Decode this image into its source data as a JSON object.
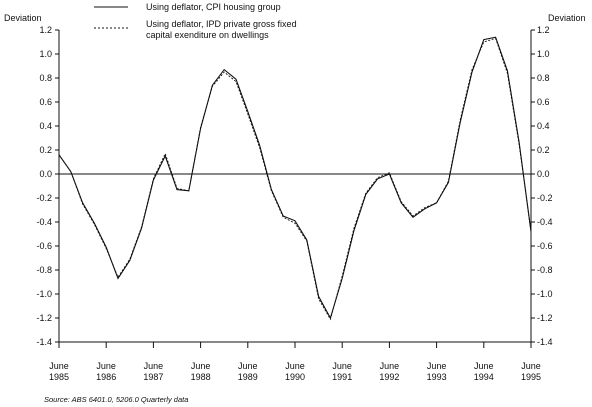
{
  "chart_data": {
    "type": "line",
    "left_axis_title": "Deviation",
    "right_axis_title": "Deviation",
    "ylim": [
      -1.4,
      1.2
    ],
    "yticks": [
      1.2,
      1.0,
      0.8,
      0.6,
      0.4,
      0.2,
      0.0,
      -0.2,
      -0.4,
      -0.6,
      -0.8,
      -1.0,
      -1.2,
      -1.4
    ],
    "ytick_labels": [
      "1.2",
      "1.0",
      "0.8",
      "0.6",
      "0.4",
      "0.2",
      "0.0",
      "-0.2",
      "-0.4",
      "-0.6",
      "-0.8",
      "-1.0",
      "-1.2",
      "-1.4"
    ],
    "xlim": [
      1985.0,
      1995.0
    ],
    "xticks": [
      {
        "month": "June",
        "year": "1985",
        "x": 1985.0
      },
      {
        "month": "June",
        "year": "1986",
        "x": 1986.0
      },
      {
        "month": "June",
        "year": "1987",
        "x": 1987.0
      },
      {
        "month": "June",
        "year": "1988",
        "x": 1988.0
      },
      {
        "month": "June",
        "year": "1989",
        "x": 1989.0
      },
      {
        "month": "June",
        "year": "1990",
        "x": 1990.0
      },
      {
        "month": "June",
        "year": "1991",
        "x": 1991.0
      },
      {
        "month": "June",
        "year": "1992",
        "x": 1992.0
      },
      {
        "month": "June",
        "year": "1993",
        "x": 1993.0
      },
      {
        "month": "June",
        "year": "1994",
        "x": 1994.0
      },
      {
        "month": "June",
        "year": "1995",
        "x": 1995.0
      }
    ],
    "zero_line": true,
    "grid": false,
    "legend_position": "top-left",
    "series": [
      {
        "name": "Using deflator, CPI housing group",
        "style": "solid",
        "legend_lines": [
          "Using deflator, CPI housing group"
        ],
        "x": [
          1985.0,
          1985.25,
          1985.5,
          1985.75,
          1986.0,
          1986.25,
          1986.5,
          1986.75,
          1987.0,
          1987.25,
          1987.5,
          1987.75,
          1988.0,
          1988.25,
          1988.5,
          1988.75,
          1989.0,
          1989.25,
          1989.5,
          1989.75,
          1990.0,
          1990.25,
          1990.5,
          1990.75,
          1991.0,
          1991.25,
          1991.5,
          1991.75,
          1992.0,
          1992.25,
          1992.5,
          1992.75,
          1993.0,
          1993.25,
          1993.5,
          1993.75,
          1994.0,
          1994.25,
          1994.5,
          1994.75,
          1995.0
        ],
        "y": [
          0.16,
          0.02,
          -0.24,
          -0.41,
          -0.61,
          -0.87,
          -0.72,
          -0.45,
          -0.05,
          0.15,
          -0.13,
          -0.14,
          0.38,
          0.74,
          0.87,
          0.79,
          0.52,
          0.24,
          -0.13,
          -0.35,
          -0.39,
          -0.55,
          -1.02,
          -1.2,
          -0.87,
          -0.47,
          -0.17,
          -0.04,
          0.0,
          -0.24,
          -0.36,
          -0.29,
          -0.24,
          -0.07,
          0.43,
          0.85,
          1.12,
          1.14,
          0.86,
          0.26,
          -0.48
        ]
      },
      {
        "name": "Using deflator, IPD private gross fixed capital exenditure on dwellings",
        "style": "dashed",
        "legend_lines": [
          "Using deflator, IPD private gross fixed",
          "capital exenditure on dwellings"
        ],
        "x": [
          1985.0,
          1985.25,
          1985.5,
          1985.75,
          1986.0,
          1986.25,
          1986.5,
          1986.75,
          1987.0,
          1987.25,
          1987.5,
          1987.75,
          1988.0,
          1988.25,
          1988.5,
          1988.75,
          1989.0,
          1989.25,
          1989.5,
          1989.75,
          1990.0,
          1990.25,
          1990.5,
          1990.75,
          1991.0,
          1991.25,
          1991.5,
          1991.75,
          1992.0,
          1992.25,
          1992.5,
          1992.75,
          1993.0,
          1993.25,
          1993.5,
          1993.75,
          1994.0,
          1994.25,
          1994.5,
          1994.75,
          1995.0
        ],
        "y": [
          0.16,
          0.02,
          -0.25,
          -0.42,
          -0.62,
          -0.86,
          -0.71,
          -0.44,
          -0.04,
          0.17,
          -0.12,
          -0.14,
          0.39,
          0.73,
          0.85,
          0.77,
          0.5,
          0.22,
          -0.14,
          -0.36,
          -0.41,
          -0.56,
          -1.04,
          -1.21,
          -0.85,
          -0.45,
          -0.16,
          -0.03,
          0.01,
          -0.23,
          -0.35,
          -0.28,
          -0.24,
          -0.06,
          0.45,
          0.87,
          1.1,
          1.13,
          0.84,
          0.24,
          -0.48
        ]
      }
    ],
    "source": "Source: ABS 6401.0, 5206.0 Quarterly data"
  }
}
